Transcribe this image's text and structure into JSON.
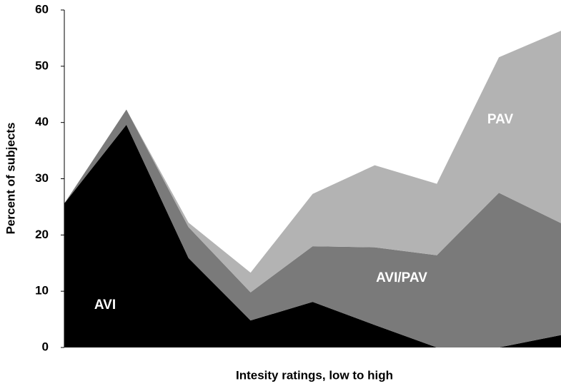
{
  "chart_data": {
    "type": "stacked-area",
    "x_label": "Intesity ratings, low to high",
    "y_label": "Percent of subjects",
    "categories": [
      null,
      null,
      null,
      null,
      null,
      null,
      null,
      null,
      null
    ],
    "series": [
      {
        "name": "AVI",
        "color": "#000000",
        "values": [
          25.6,
          39.6,
          15.9,
          4.8,
          8.1,
          4.0,
          0,
          0,
          2.2
        ]
      },
      {
        "name": "AVI/PAV",
        "color": "#7a7a7a",
        "values": [
          0,
          2.7,
          5.5,
          5.0,
          9.9,
          13.8,
          16.4,
          27.5,
          19.9
        ]
      },
      {
        "name": "PAV",
        "color": "#b3b3b3",
        "values": [
          0,
          0,
          0.8,
          3.5,
          9.3,
          14.6,
          12.7,
          24.1,
          34.2
        ]
      }
    ],
    "ylim": [
      0,
      60
    ],
    "yticks": [
      0,
      10,
      20,
      30,
      40,
      50,
      60
    ],
    "grid": false
  }
}
